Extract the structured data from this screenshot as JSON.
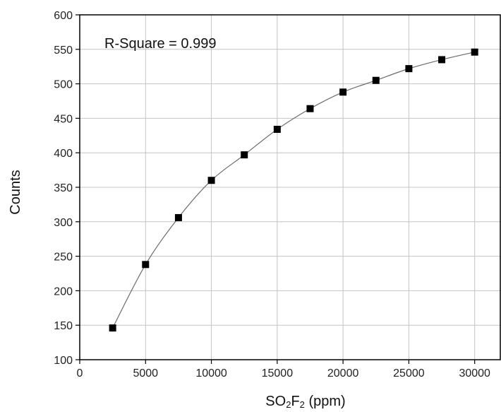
{
  "chart_data": {
    "type": "scatter",
    "title": "",
    "xlabel": "SO2F2 (ppm)",
    "xlabel_parts": {
      "base": "SO",
      "sub1": "2",
      "mid": "F",
      "sub2": "2",
      "rest": " (ppm)"
    },
    "ylabel": "Counts",
    "xlim": [
      0,
      32000
    ],
    "ylim": [
      100,
      600
    ],
    "x_ticks": [
      0,
      5000,
      10000,
      15000,
      20000,
      25000,
      30000
    ],
    "y_ticks": [
      100,
      150,
      200,
      250,
      300,
      350,
      400,
      450,
      500,
      550,
      600
    ],
    "grid": true,
    "annotation": "R-Square = 0.999",
    "marker_color": "#000000",
    "fit_line_color": "#6b6b6b",
    "series": [
      {
        "x": [
          2500,
          5000,
          7500,
          10000,
          12500,
          15000,
          17500,
          20000,
          22500,
          25000,
          27500,
          30000
        ],
        "y": [
          146,
          238,
          306,
          360,
          397,
          434,
          464,
          488,
          505,
          522,
          535,
          546
        ]
      }
    ]
  }
}
